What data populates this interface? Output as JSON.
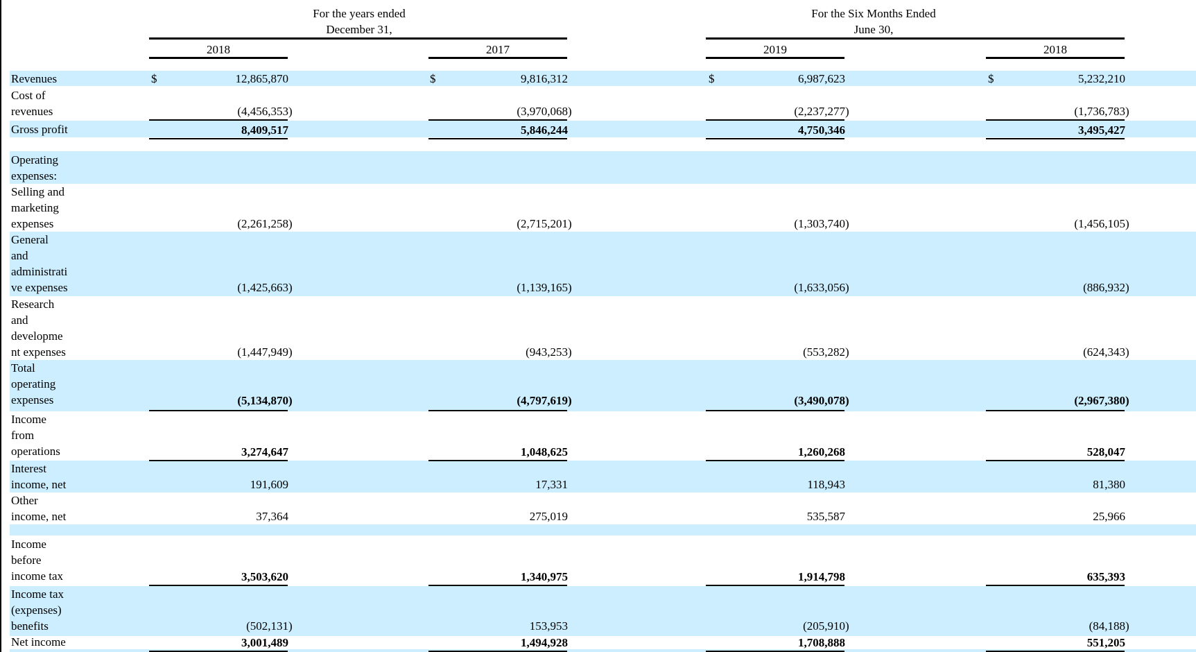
{
  "header": {
    "group1_line1": "For the years ended",
    "group1_line2": "December 31,",
    "group2_line1": "For the Six Months Ended",
    "group2_line2": "June 30,",
    "years": [
      "2018",
      "2017",
      "2019",
      "2018"
    ]
  },
  "currency_symbol": "$",
  "rows": {
    "revenues": {
      "label": "Revenues",
      "v": [
        "12,865,870",
        "9,816,312",
        "6,987,623",
        "5,232,210"
      ]
    },
    "cost_of_revenues": {
      "label_1": "Cost of",
      "label_2": "revenues",
      "v": [
        "(4,456,353",
        "(3,970,068",
        "(2,237,277",
        "(1,736,783"
      ]
    },
    "gross_profit": {
      "label": "Gross profit",
      "v": [
        "8,409,517",
        "5,846,244",
        "4,750,346",
        "3,495,427"
      ]
    },
    "operating_expenses": {
      "label_1": "Operating",
      "label_2": "expenses:"
    },
    "selling": {
      "label_1": "Selling and",
      "label_2": "marketing",
      "label_3": "expenses",
      "v": [
        "(2,261,258",
        "(2,715,201",
        "(1,303,740",
        "(1,456,105"
      ]
    },
    "general": {
      "label_1": "General",
      "label_2": "and",
      "label_3": "administrati",
      "label_4": "ve expenses",
      "v": [
        "(1,425,663",
        "(1,139,165",
        "(1,633,056",
        "(886,932"
      ]
    },
    "research": {
      "label_1": "Research",
      "label_2": "and",
      "label_3": "developme",
      "label_4": "nt expenses",
      "v": [
        "(1,447,949",
        "(943,253",
        "(553,282",
        "(624,343"
      ]
    },
    "total_opex": {
      "label_1": "Total",
      "label_2": "operating",
      "label_3": "expenses",
      "v": [
        "(5,134,870",
        "(4,797,619",
        "(3,490,078",
        "(2,967,380"
      ]
    },
    "income_ops": {
      "label_1": "Income",
      "label_2": "from",
      "label_3": "operations",
      "v": [
        "3,274,647",
        "1,048,625",
        "1,260,268",
        "528,047"
      ]
    },
    "interest": {
      "label_1": "Interest",
      "label_2": "income, net",
      "v": [
        "191,609",
        "17,331",
        "118,943",
        "81,380"
      ]
    },
    "other": {
      "label_1": "Other",
      "label_2": "income, net",
      "v": [
        "37,364",
        "275,019",
        "535,587",
        "25,966"
      ]
    },
    "before_tax": {
      "label_1": "Income",
      "label_2": "before",
      "label_3": "income tax",
      "v": [
        "3,503,620",
        "1,340,975",
        "1,914,798",
        "635,393"
      ]
    },
    "tax": {
      "label_1": "Income tax",
      "label_2": "(expenses)",
      "label_3": "benefits",
      "v": [
        "(502,131",
        "153,953",
        "(205,910",
        "(84,188"
      ]
    },
    "net_income": {
      "label": "Net income",
      "v": [
        "3,001,489",
        "1,494,928",
        "1,708,888",
        "551,205"
      ]
    }
  },
  "close_paren": ")",
  "colors": {
    "band": "#cceeff",
    "rule": "#000000"
  }
}
